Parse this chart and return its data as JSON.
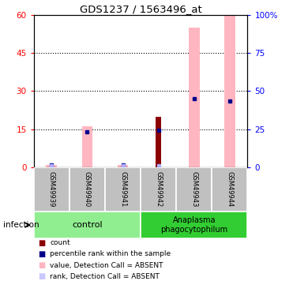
{
  "title": "GDS1237 / 1563496_at",
  "samples": [
    "GSM49939",
    "GSM49940",
    "GSM49941",
    "GSM49942",
    "GSM49943",
    "GSM49944"
  ],
  "pink_bars": [
    0.8,
    16.0,
    0.8,
    0.0,
    55.0,
    60.0
  ],
  "red_bars": [
    0.0,
    0.0,
    0.0,
    20.0,
    0.0,
    0.0
  ],
  "blue_dots": [
    0.9,
    14.0,
    0.9,
    14.5,
    27.0,
    26.0
  ],
  "light_blue_dots": [
    0.5,
    0.0,
    0.5,
    0.5,
    0.0,
    0.0
  ],
  "ylim_left": [
    0,
    60
  ],
  "ylim_right": [
    0,
    100
  ],
  "yticks_left": [
    0,
    15,
    30,
    45,
    60
  ],
  "yticks_right": [
    0,
    25,
    50,
    75,
    100
  ],
  "ytick_labels_left": [
    "0",
    "15",
    "30",
    "45",
    "60"
  ],
  "ytick_labels_right": [
    "0",
    "25",
    "50",
    "75",
    "100%"
  ],
  "legend_colors": [
    "#8b0000",
    "#00008b",
    "#ffb6c1",
    "#c8c8ff"
  ],
  "legend_labels": [
    "count",
    "percentile rank within the sample",
    "value, Detection Call = ABSENT",
    "rank, Detection Call = ABSENT"
  ],
  "control_color": "#90ee90",
  "anaplasma_color": "#32cd32",
  "sample_bg_color": "#c0c0c0",
  "bar_width": 0.3,
  "red_bar_width": 0.15
}
